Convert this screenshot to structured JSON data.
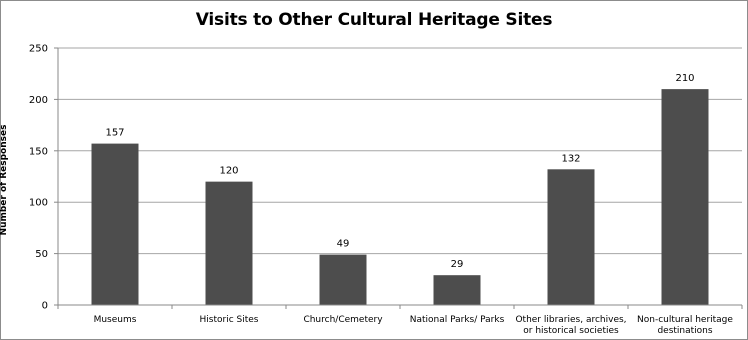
{
  "chart_data": {
    "type": "bar",
    "title": "Visits to Other Cultural Heritage Sites",
    "xlabel": "",
    "ylabel": "Number of Responses",
    "ylim": [
      0,
      250
    ],
    "yticks": [
      0,
      50,
      100,
      150,
      200,
      250
    ],
    "grid": true,
    "legend": "none",
    "bar_color": "#4d4d4d",
    "categories": [
      [
        "Museums"
      ],
      [
        "Historic Sites"
      ],
      [
        "Church/Cemetery"
      ],
      [
        "National Parks/ Parks"
      ],
      [
        "Other libraries, archives,",
        "or historical societies"
      ],
      [
        "Non-cultural heritage",
        "destinations"
      ]
    ],
    "values": [
      157,
      120,
      49,
      29,
      132,
      210
    ]
  }
}
